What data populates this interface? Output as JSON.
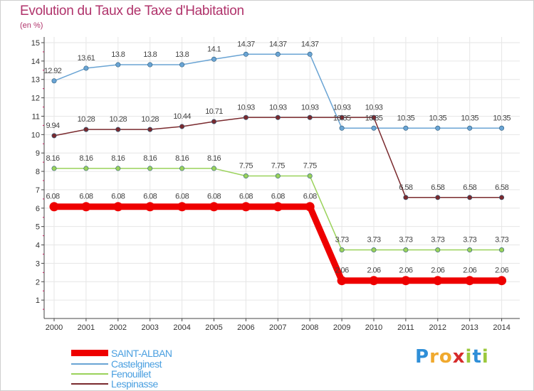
{
  "title": "Evolution du Taux de Taxe d'Habitation",
  "subtitle": "(en %)",
  "logo": {
    "letters": [
      "P",
      "r",
      "o",
      "x",
      "i",
      "t",
      "i"
    ],
    "colors": [
      "#2f8fd8",
      "#f0a92e",
      "#f0a92e",
      "#d62b2b",
      "#9bc83c",
      "#2f8fd8",
      "#9bc83c"
    ]
  },
  "chart_data": {
    "type": "line",
    "x": [
      2000,
      2001,
      2002,
      2003,
      2004,
      2005,
      2006,
      2007,
      2008,
      2009,
      2010,
      2011,
      2012,
      2013,
      2014
    ],
    "ylim": [
      1,
      15
    ],
    "yticks": [
      1,
      2,
      3,
      4,
      5,
      6,
      7,
      8,
      9,
      10,
      11,
      12,
      13,
      14,
      15
    ],
    "grid": true,
    "legend_position": "bottom-left",
    "series": [
      {
        "name": "SAINT-ALBAN",
        "color": "#ee0000",
        "labelColor": "#4a9fe0",
        "values": [
          6.08,
          6.08,
          6.08,
          6.08,
          6.08,
          6.08,
          6.08,
          6.08,
          6.08,
          2.06,
          2.06,
          2.06,
          2.06,
          2.06,
          2.06
        ],
        "labels": [
          "6.08",
          "6.08",
          "6.08",
          "6.08",
          "6.08",
          "6.08",
          "6.08",
          "6.08",
          "6.08",
          "2.06",
          "2.06",
          "2.06",
          "2.06",
          "2.06",
          "2.06"
        ]
      },
      {
        "name": "Castelginest",
        "color": "#6aa4d4",
        "labelColor": "#555555",
        "values": [
          12.92,
          13.61,
          13.8,
          13.8,
          13.8,
          14.1,
          14.37,
          14.37,
          14.37,
          10.35,
          10.35,
          10.35,
          10.35,
          10.35,
          10.35
        ],
        "labels": [
          "12.92",
          "13.61",
          "13.8",
          "13.8",
          "13.8",
          "14.1",
          "14.37",
          "14.37",
          "14.37",
          "10.35",
          "10.35",
          "10.35",
          "10.35",
          "10.35",
          "10.35"
        ]
      },
      {
        "name": "Fenouillet",
        "color": "#9ad25a",
        "labelColor": "#555555",
        "values": [
          8.16,
          8.16,
          8.16,
          8.16,
          8.16,
          8.16,
          7.75,
          7.75,
          7.75,
          3.73,
          3.73,
          3.73,
          3.73,
          3.73,
          3.73
        ],
        "labels": [
          "8.16",
          "8.16",
          "8.16",
          "8.16",
          "8.16",
          "8.16",
          "7.75",
          "7.75",
          "7.75",
          "3.73",
          "3.73",
          "3.73",
          "3.73",
          "3.73",
          "3.73"
        ]
      },
      {
        "name": "Lespinasse",
        "color": "#7a2a2e",
        "labelColor": "#555555",
        "values": [
          9.94,
          10.28,
          10.28,
          10.28,
          10.44,
          10.71,
          10.93,
          10.93,
          10.93,
          10.93,
          10.93,
          6.58,
          6.58,
          6.58,
          6.58
        ],
        "labels": [
          "9.94",
          "10.28",
          "10.28",
          "10.28",
          "10.44",
          "10.71",
          "10.93",
          "10.93",
          "10.93",
          "10.93",
          "10.93",
          "6.58",
          "6.58",
          "6.58",
          "6.58"
        ]
      }
    ]
  }
}
